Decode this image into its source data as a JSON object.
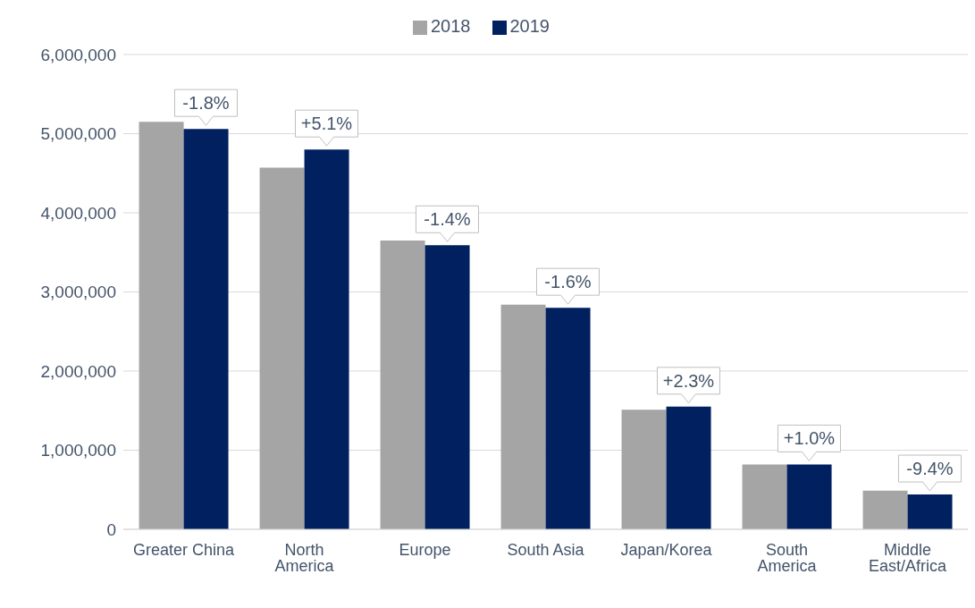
{
  "chart_data": {
    "type": "bar",
    "categories": [
      "Greater China",
      "North America",
      "Europe",
      "South Asia",
      "Japan/Korea",
      "South America",
      "Middle East/Africa"
    ],
    "series": [
      {
        "name": "2018",
        "color": "#a5a5a5",
        "values": [
          5150000,
          4570000,
          3650000,
          2840000,
          1510000,
          820000,
          490000
        ]
      },
      {
        "name": "2019",
        "color": "#002060",
        "values": [
          5060000,
          4800000,
          3590000,
          2800000,
          1550000,
          820000,
          440000
        ]
      }
    ],
    "annotations": [
      {
        "text": "-1.8%",
        "x": "Greater China",
        "y": 5060000
      },
      {
        "text": "+5.1%",
        "x": "North America",
        "y": 4800000
      },
      {
        "text": "-1.4%",
        "x": "Europe",
        "y": 3590000
      },
      {
        "text": "-1.6%",
        "x": "South Asia",
        "y": 2800000
      },
      {
        "text": "+2.3%",
        "x": "Japan/Korea",
        "y": 1550000
      },
      {
        "text": "+1.0%",
        "x": "South America",
        "y": 820000
      },
      {
        "text": "-9.4%",
        "x": "Middle East/Africa",
        "y": 440000
      }
    ],
    "ylim": [
      0,
      6000000
    ],
    "yticks": [
      0,
      {
        "value": 1000000,
        "label": "1,000,000"
      },
      {
        "value": 2000000,
        "label": "2,000,000"
      },
      {
        "value": 3000000,
        "label": "3,000,000"
      },
      {
        "value": 4000000,
        "label": "4,000,000"
      },
      {
        "value": 5000000,
        "label": "5,000,000"
      },
      {
        "value": 6000000,
        "label": "6,000,000"
      }
    ],
    "grid": "y",
    "legend": "top"
  }
}
